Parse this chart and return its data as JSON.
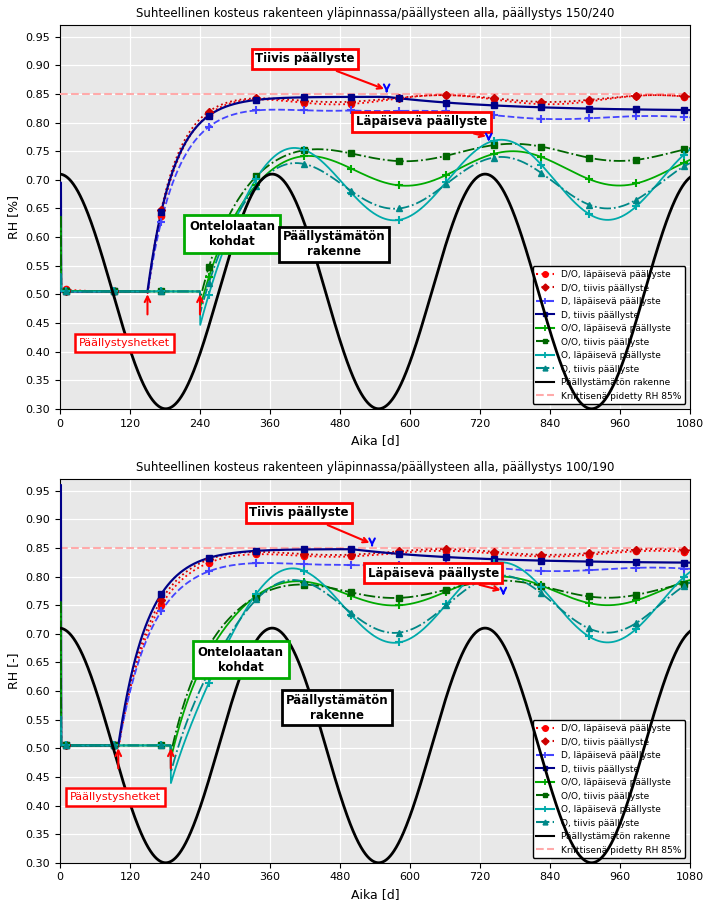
{
  "title1": "Suhteellinen kosteus rakenteen yläpinnassa/päällysteen alla, päällystys 150/240",
  "title2": "Suhteellinen kosteus rakenteen yläpinnassa/päällysteen alla, päällystys 100/190",
  "ylabel1": "RH [%]",
  "ylabel2": "RH [-]",
  "xlabel": "Aika [d]",
  "xlim": [
    0,
    1080
  ],
  "ylim": [
    0.3,
    0.97
  ],
  "xticks": [
    0,
    120,
    240,
    360,
    480,
    600,
    720,
    840,
    960,
    1080
  ],
  "yticks": [
    0.3,
    0.35,
    0.4,
    0.45,
    0.5,
    0.55,
    0.6,
    0.65,
    0.7,
    0.75,
    0.8,
    0.85,
    0.9,
    0.95
  ],
  "critical_rh": 0.85,
  "legend_entries": [
    "D/O, läpäisevä päällyste",
    "D/O, tiivis päällyste",
    "D, läpäisevä päällyste",
    "D, tiivis päällyste",
    "O/O, läpäisevä päällyste",
    "O/O, tiivis päällyste",
    "O, läpäisevä päällyste",
    "O, tiivis päällyste",
    "Päällystämätön rakenne",
    "Kriittisenä pidetty RH 85%"
  ],
  "bg_color": "#e8e8e8",
  "grid_color": "white",
  "colors": {
    "DO_lap": "#ff0000",
    "DO_tiiv": "#cc0000",
    "D_lap": "#4444ff",
    "D_tiiv": "#000088",
    "OO_lap": "#00aa00",
    "OO_tiiv": "#006600",
    "O_lap": "#00aaaa",
    "O_tiiv": "#008888",
    "black": "#000000",
    "critical": "#ffaaaa"
  }
}
